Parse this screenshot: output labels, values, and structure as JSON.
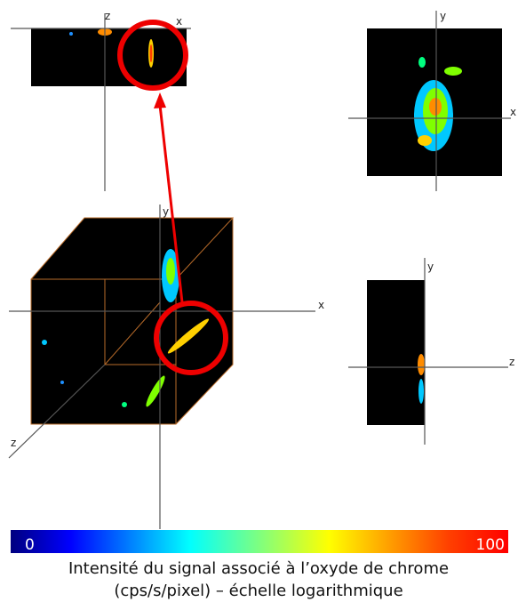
{
  "panels": {
    "top_left": {
      "axis_1": "z",
      "axis_2": "x"
    },
    "top_right": {
      "axis_1": "y",
      "axis_2": "x"
    },
    "cube": {
      "axis_1": "y",
      "axis_2": "x",
      "axis_3": "z"
    },
    "bottom_right": {
      "axis_1": "y",
      "axis_2": "z"
    }
  },
  "colorbar": {
    "min_label": "0",
    "max_label": "100"
  },
  "caption": {
    "line_1": "Intensité du signal associé à l’oxyde de chrome",
    "line_2": "(cps/s/pixel) – échelle logarithmique"
  }
}
